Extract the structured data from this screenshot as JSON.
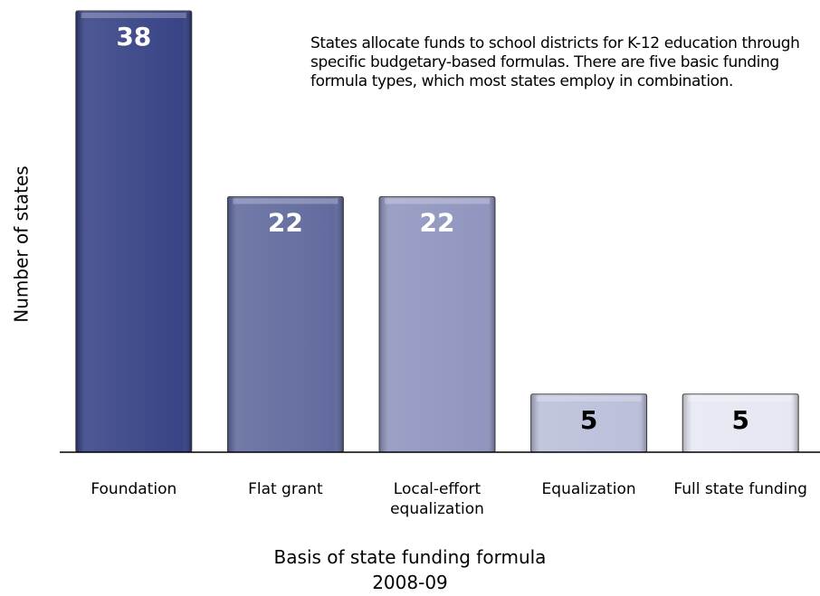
{
  "chart_data": {
    "type": "bar",
    "annotation": "States allocate funds to school districts for K-12 education through specific budgetary-based formulas.  There are five basic funding formula types, which most states employ in combination.",
    "ylabel": "Number of states",
    "xlabel": "Basis of state funding formula",
    "subtitle": "2008-09",
    "categories": [
      "Foundation",
      "Flat grant",
      "Local-effort equalization",
      "Equalization",
      "Full state funding"
    ],
    "values": [
      38,
      22,
      22,
      5,
      5
    ],
    "colors": [
      "#2e3a80",
      "#5a6399",
      "#8a90bb",
      "#b8bcd8",
      "#e4e6f2"
    ],
    "label_colors": [
      "#ffffff",
      "#ffffff",
      "#ffffff",
      "#000000",
      "#000000"
    ],
    "ylim": [
      0,
      38
    ]
  }
}
